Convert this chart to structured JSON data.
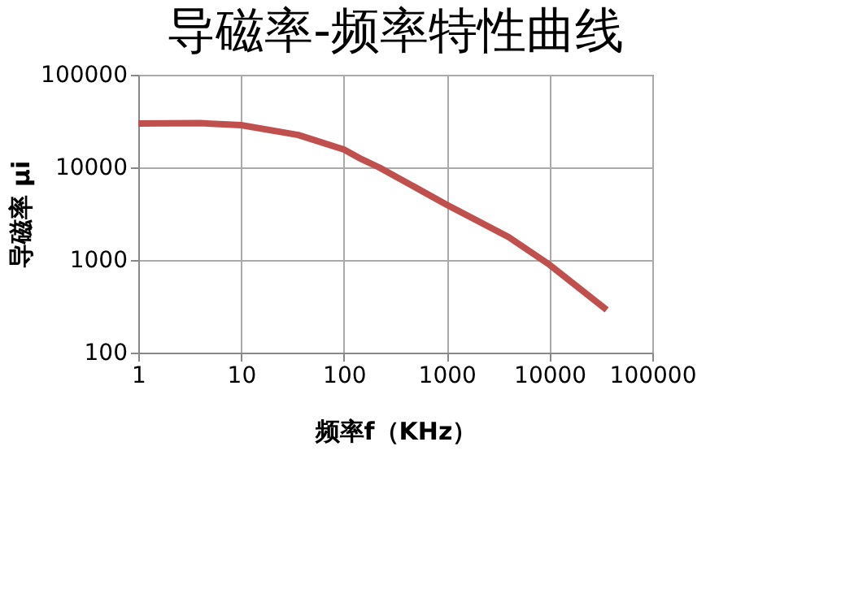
{
  "chart_data": {
    "type": "line",
    "title": "导磁率-频率特性曲线",
    "xlabel": "频率f（KHz）",
    "ylabel": "导磁率 μi",
    "x": [
      1,
      4,
      10,
      36,
      100,
      150,
      220,
      1000,
      4000,
      10000,
      36000
    ],
    "series": [
      {
        "color": "#c0504d",
        "values": [
          29800,
          30000,
          28600,
          22400,
          15600,
          12200,
          10000,
          3950,
          1770,
          890,
          290
        ]
      }
    ],
    "xlim": [
      1,
      100000
    ],
    "ylim": [
      100,
      100000
    ],
    "xticks": [
      1,
      10,
      100,
      1000,
      10000,
      100000
    ],
    "yticks": [
      100,
      1000,
      10000,
      100000
    ],
    "log": "xy",
    "grid": true,
    "marker": "none",
    "line_style": "solid"
  }
}
